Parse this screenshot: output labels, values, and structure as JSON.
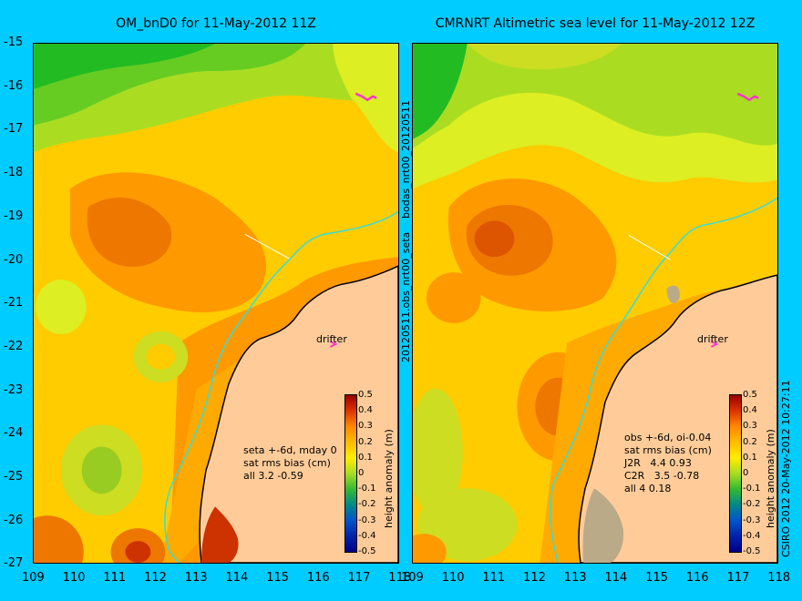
{
  "left_panel": {
    "title": "OM_bnD0 for 11-May-2012 11Z",
    "drifter_label": "drifter",
    "stats_lines": [
      "seta +-6d, mday 0",
      "sat rms bias (cm)",
      "all 3.2 -0.59"
    ]
  },
  "right_panel": {
    "title": "CMRNRT Altimetric sea level  for 11-May-2012 12Z",
    "drifter_label": "drifter",
    "stats_lines": [
      "obs +-6d, oi-0.04",
      "sat rms bias (cm)",
      "J2R   4.4 0.93",
      "C2R   3.5 -0.78",
      "all 4 0.18"
    ]
  },
  "middle_vertical_text_top": "bodas_nrt00_20120511",
  "middle_vertical_text_bottom": "20120511.obs_nrt00_seta",
  "right_vertical_text": "CSIRO 2012  20-May-2012 10:27:11",
  "colorbar": {
    "label": "height anomaly (m)",
    "ticks": [
      "0.5",
      "0.4",
      "0.3",
      "0.2",
      "0.1",
      "0",
      "-0.1",
      "-0.2",
      "-0.3",
      "-0.4",
      "-0.5"
    ]
  },
  "axes": {
    "lat_ticks": [
      "-15",
      "-16",
      "-17",
      "-18",
      "-19",
      "-20",
      "-21",
      "-22",
      "-23",
      "-24",
      "-25",
      "-26",
      "-27"
    ],
    "left_lon_ticks": [
      "109",
      "110",
      "111",
      "112",
      "113",
      "114",
      "115",
      "116",
      "117",
      "118"
    ],
    "right_lon_ticks": [
      "109",
      "110",
      "111",
      "112",
      "113",
      "114",
      "115",
      "116",
      "117",
      "118"
    ]
  },
  "colors": {
    "background": "#00ccff",
    "land": "#ffcc99",
    "coastline": "#000000",
    "isobath": "#33dddd",
    "drifter": "#ff33cc"
  }
}
